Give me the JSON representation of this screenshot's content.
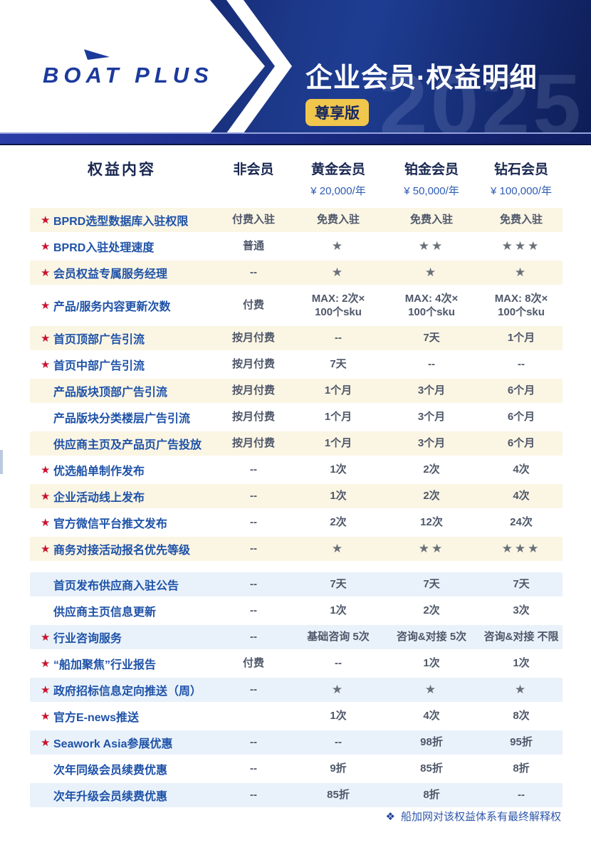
{
  "header": {
    "brand": "BOAT PLUS",
    "title": "企业会员·权益明细",
    "badge": "尊享版",
    "watermark": "2025"
  },
  "table": {
    "benefit_header": "权益内容",
    "star_glyph": "★",
    "columns": [
      {
        "name": "非会员",
        "price": ""
      },
      {
        "name": "黄金会员",
        "price": "¥ 20,000/年"
      },
      {
        "name": "铂金会员",
        "price": "¥ 50,000/年"
      },
      {
        "name": "钻石会员",
        "price": "¥ 100,000/年"
      }
    ],
    "rows": [
      {
        "star": true,
        "bg": "cream",
        "label": "BPRD选型数据库入驻权限",
        "cells": [
          "付费入驻",
          "免费入驻",
          "免费入驻",
          "免费入驻"
        ]
      },
      {
        "star": true,
        "bg": "plain",
        "label": "BPRD入驻处理速度",
        "cells": [
          "普通",
          "★",
          "★★",
          "★★★"
        ]
      },
      {
        "star": true,
        "bg": "cream",
        "label": "会员权益专属服务经理",
        "cells": [
          "--",
          "★",
          "★",
          "★"
        ]
      },
      {
        "star": true,
        "bg": "plain",
        "tall": true,
        "label": "产品/服务内容更新次数",
        "cells": [
          "付费",
          "MAX: 2次×\n100个sku",
          "MAX: 4次×\n100个sku",
          "MAX: 8次×\n100个sku"
        ]
      },
      {
        "star": true,
        "bg": "cream",
        "label": "首页顶部广告引流",
        "cells": [
          "按月付费",
          "--",
          "7天",
          "1个月"
        ]
      },
      {
        "star": true,
        "bg": "plain",
        "label": "首页中部广告引流",
        "cells": [
          "按月付费",
          "7天",
          "--",
          "--"
        ]
      },
      {
        "star": false,
        "bg": "cream",
        "label": "产品版块顶部广告引流",
        "cells": [
          "按月付费",
          "1个月",
          "3个月",
          "6个月"
        ]
      },
      {
        "star": false,
        "bg": "plain",
        "label": "产品版块分类楼层广告引流",
        "cells": [
          "按月付费",
          "1个月",
          "3个月",
          "6个月"
        ]
      },
      {
        "star": false,
        "bg": "cream",
        "label": "供应商主页及产品页广告投放",
        "cells": [
          "按月付费",
          "1个月",
          "3个月",
          "6个月"
        ]
      },
      {
        "star": true,
        "bg": "plain",
        "label": "优选船单制作发布",
        "cells": [
          "--",
          "1次",
          "2次",
          "4次"
        ]
      },
      {
        "star": true,
        "bg": "cream",
        "label": "企业活动线上发布",
        "cells": [
          "--",
          "1次",
          "2次",
          "4次"
        ]
      },
      {
        "star": true,
        "bg": "plain",
        "label": "官方微信平台推文发布",
        "cells": [
          "--",
          "2次",
          "12次",
          "24次"
        ]
      },
      {
        "star": true,
        "bg": "cream",
        "label": "商务对接活动报名优先等级",
        "cells": [
          "--",
          "★",
          "★★",
          "★★★"
        ]
      },
      {
        "star": false,
        "bg": "blue",
        "gap_before": true,
        "label": "首页发布供应商入驻公告",
        "cells": [
          "--",
          "7天",
          "7天",
          "7天"
        ]
      },
      {
        "star": false,
        "bg": "plain",
        "label": "供应商主页信息更新",
        "cells": [
          "--",
          "1次",
          "2次",
          "3次"
        ]
      },
      {
        "star": true,
        "bg": "blue",
        "label": "行业咨询服务",
        "cells": [
          "--",
          "基础咨询 5次",
          "咨询&对接 5次",
          "咨询&对接 不限"
        ]
      },
      {
        "star": true,
        "bg": "plain",
        "label": "“船加聚焦”行业报告",
        "cells": [
          "付费",
          "--",
          "1次",
          "1次"
        ]
      },
      {
        "star": true,
        "bg": "blue",
        "label": "政府招标信息定向推送（周）",
        "cells": [
          "--",
          "★",
          "★",
          "★"
        ]
      },
      {
        "star": true,
        "bg": "plain",
        "label": "官方E-news推送",
        "cells": [
          "",
          "1次",
          "4次",
          "8次"
        ]
      },
      {
        "star": true,
        "bg": "blue",
        "label": "Seawork Asia参展优惠",
        "cells": [
          "--",
          "--",
          "98折",
          "95折"
        ]
      },
      {
        "star": false,
        "bg": "plain",
        "label": "次年同级会员续费优惠",
        "cells": [
          "--",
          "9折",
          "85折",
          "8折"
        ]
      },
      {
        "star": false,
        "bg": "blue",
        "label": "次年升级会员续费优惠",
        "cells": [
          "--",
          "85折",
          "8折",
          "--"
        ]
      }
    ]
  },
  "footer": {
    "icon": "❖",
    "note": "船加网对该权益体系有最终解释权"
  },
  "colors": {
    "header_navy": "#1c3787",
    "band_blue": "#1b2c85",
    "badge_yellow": "#f1c64d",
    "label_blue": "#1e52a8",
    "red_star": "#c9132f",
    "gray_star": "#6a7078",
    "cream_row": "#fbf5e4",
    "blue_row": "#e9f2fa",
    "price_blue": "#2e5cb5",
    "footer_blue": "#2e57ac"
  }
}
